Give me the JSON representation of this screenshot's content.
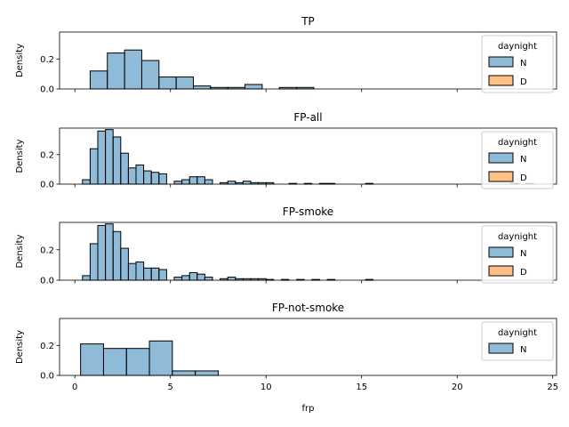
{
  "xlabel": "frp",
  "ylabel": "Density",
  "xticks": [
    0,
    5,
    10,
    15,
    20,
    25
  ],
  "yticks": [
    0.0,
    0.2
  ],
  "colors": {
    "N": "#1f77b4",
    "D": "#ff7f0e"
  },
  "chart_data": [
    {
      "type": "histogram",
      "title": "TP",
      "xlim": [
        -0.8,
        25.2
      ],
      "ylim": [
        0,
        0.38
      ],
      "legend": {
        "title": "daynight",
        "entries": [
          "N",
          "D"
        ],
        "placement": "top-right"
      },
      "bins": [
        {
          "x0": 0.8,
          "x1": 1.7,
          "N": 0.12,
          "D": 0
        },
        {
          "x0": 1.7,
          "x2": 0,
          "x1": 2.6,
          "N": 0.24,
          "D": 0
        },
        {
          "x0": 2.6,
          "x1": 3.5,
          "N": 0.26,
          "D": 0
        },
        {
          "x0": 3.5,
          "x1": 4.4,
          "N": 0.19,
          "D": 0
        },
        {
          "x0": 4.4,
          "x1": 5.3,
          "N": 0.08,
          "D": 0
        },
        {
          "x0": 5.3,
          "x1": 6.2,
          "N": 0.08,
          "D": 0
        },
        {
          "x0": 6.2,
          "x1": 7.1,
          "N": 0.02,
          "D": 0
        },
        {
          "x0": 7.1,
          "x1": 8.0,
          "N": 0.01,
          "D": 0
        },
        {
          "x0": 8.0,
          "x1": 8.9,
          "N": 0.01,
          "D": 0
        },
        {
          "x0": 8.9,
          "x1": 9.8,
          "N": 0.03,
          "D": 0
        },
        {
          "x0": 10.7,
          "x1": 11.6,
          "N": 0.01,
          "D": 0
        },
        {
          "x0": 11.6,
          "x1": 12.5,
          "N": 0.01,
          "D": 0
        }
      ]
    },
    {
      "type": "histogram",
      "title": "FP-all",
      "xlim": [
        -0.8,
        25.2
      ],
      "ylim": [
        0,
        0.38
      ],
      "legend": {
        "title": "daynight",
        "entries": [
          "N",
          "D"
        ],
        "placement": "top-right"
      },
      "bins": [
        {
          "x0": 0.4,
          "x1": 0.8,
          "N": 0.03,
          "D": 0
        },
        {
          "x0": 0.8,
          "x1": 1.2,
          "N": 0.24,
          "D": 0
        },
        {
          "x0": 1.2,
          "x1": 1.6,
          "N": 0.36,
          "D": 0
        },
        {
          "x0": 1.6,
          "x1": 2.0,
          "N": 0.37,
          "D": 0
        },
        {
          "x0": 2.0,
          "x1": 2.4,
          "N": 0.32,
          "D": 0
        },
        {
          "x0": 2.4,
          "x1": 2.8,
          "N": 0.21,
          "D": 0
        },
        {
          "x0": 2.8,
          "x1": 3.2,
          "N": 0.11,
          "D": 0
        },
        {
          "x0": 3.2,
          "x1": 3.6,
          "N": 0.13,
          "D": 0
        },
        {
          "x0": 3.6,
          "x1": 4.0,
          "N": 0.09,
          "D": 0
        },
        {
          "x0": 4.0,
          "x1": 4.4,
          "N": 0.08,
          "D": 0
        },
        {
          "x0": 4.4,
          "x1": 4.8,
          "N": 0.07,
          "D": 0
        },
        {
          "x0": 5.2,
          "x1": 5.6,
          "N": 0.02,
          "D": 0
        },
        {
          "x0": 5.6,
          "x1": 6.0,
          "N": 0.03,
          "D": 0
        },
        {
          "x0": 6.0,
          "x1": 6.4,
          "N": 0.05,
          "D": 0
        },
        {
          "x0": 6.4,
          "x1": 6.8,
          "N": 0.05,
          "D": 0
        },
        {
          "x0": 6.8,
          "x1": 7.2,
          "N": 0.03,
          "D": 0
        },
        {
          "x0": 7.6,
          "x1": 8.0,
          "N": 0.01,
          "D": 0
        },
        {
          "x0": 8.0,
          "x1": 8.4,
          "N": 0.02,
          "D": 0
        },
        {
          "x0": 8.4,
          "x1": 8.8,
          "N": 0.01,
          "D": 0
        },
        {
          "x0": 8.8,
          "x1": 9.2,
          "N": 0.02,
          "D": 0
        },
        {
          "x0": 9.2,
          "x1": 9.6,
          "N": 0.01,
          "D": 0
        },
        {
          "x0": 9.6,
          "x1": 10.0,
          "N": 0.01,
          "D": 0
        },
        {
          "x0": 10.0,
          "x1": 10.4,
          "N": 0.01,
          "D": 0
        },
        {
          "x0": 11.2,
          "x1": 11.6,
          "N": 0.005,
          "D": 0
        },
        {
          "x0": 12.0,
          "x1": 12.4,
          "N": 0.005,
          "D": 0
        },
        {
          "x0": 12.8,
          "x1": 13.2,
          "N": 0.005,
          "D": 0
        },
        {
          "x0": 13.2,
          "x1": 13.6,
          "N": 0.005,
          "D": 0
        },
        {
          "x0": 15.2,
          "x1": 15.6,
          "N": 0.005,
          "D": 0
        },
        {
          "x0": 22.8,
          "x1": 23.2,
          "N": 0.005,
          "D": 0
        },
        {
          "x0": 23.6,
          "x1": 24.0,
          "N": 0.005,
          "D": 0
        }
      ]
    },
    {
      "type": "histogram",
      "title": "FP-smoke",
      "xlim": [
        -0.8,
        25.2
      ],
      "ylim": [
        0,
        0.38
      ],
      "legend": {
        "title": "daynight",
        "entries": [
          "N",
          "D"
        ],
        "placement": "top-right"
      },
      "bins": [
        {
          "x0": 0.4,
          "x1": 0.8,
          "N": 0.03,
          "D": 0
        },
        {
          "x0": 0.8,
          "x1": 1.2,
          "N": 0.24,
          "D": 0
        },
        {
          "x0": 1.2,
          "x1": 1.6,
          "N": 0.36,
          "D": 0
        },
        {
          "x0": 1.6,
          "x1": 2.0,
          "N": 0.37,
          "D": 0
        },
        {
          "x0": 2.0,
          "x1": 2.4,
          "N": 0.32,
          "D": 0
        },
        {
          "x0": 2.4,
          "x1": 2.8,
          "N": 0.21,
          "D": 0
        },
        {
          "x0": 2.8,
          "x1": 3.2,
          "N": 0.11,
          "D": 0
        },
        {
          "x0": 3.2,
          "x1": 3.6,
          "N": 0.12,
          "D": 0
        },
        {
          "x0": 3.6,
          "x1": 4.0,
          "N": 0.08,
          "D": 0
        },
        {
          "x0": 4.0,
          "x1": 4.4,
          "N": 0.08,
          "D": 0
        },
        {
          "x0": 4.4,
          "x1": 4.8,
          "N": 0.07,
          "D": 0
        },
        {
          "x0": 5.2,
          "x1": 5.6,
          "N": 0.02,
          "D": 0
        },
        {
          "x0": 5.6,
          "x1": 6.0,
          "N": 0.03,
          "D": 0
        },
        {
          "x0": 6.0,
          "x1": 6.4,
          "N": 0.05,
          "D": 0
        },
        {
          "x0": 6.4,
          "x1": 6.8,
          "N": 0.04,
          "D": 0
        },
        {
          "x0": 6.8,
          "x1": 7.2,
          "N": 0.02,
          "D": 0
        },
        {
          "x0": 7.6,
          "x1": 8.0,
          "N": 0.01,
          "D": 0
        },
        {
          "x0": 8.0,
          "x1": 8.4,
          "N": 0.02,
          "D": 0
        },
        {
          "x0": 8.4,
          "x1": 8.8,
          "N": 0.01,
          "D": 0
        },
        {
          "x0": 8.8,
          "x1": 9.2,
          "N": 0.01,
          "D": 0
        },
        {
          "x0": 9.2,
          "x1": 9.6,
          "N": 0.01,
          "D": 0
        },
        {
          "x0": 9.6,
          "x1": 10.0,
          "N": 0.01,
          "D": 0
        },
        {
          "x0": 10.0,
          "x1": 10.4,
          "N": 0.005,
          "D": 0
        },
        {
          "x0": 10.8,
          "x1": 11.2,
          "N": 0.005,
          "D": 0
        },
        {
          "x0": 11.6,
          "x1": 12.0,
          "N": 0.005,
          "D": 0
        },
        {
          "x0": 12.4,
          "x1": 12.8,
          "N": 0.005,
          "D": 0
        },
        {
          "x0": 13.2,
          "x1": 13.6,
          "N": 0.005,
          "D": 0
        },
        {
          "x0": 15.2,
          "x1": 15.6,
          "N": 0.005,
          "D": 0
        }
      ]
    },
    {
      "type": "histogram",
      "title": "FP-not-smoke",
      "xlim": [
        -0.8,
        25.2
      ],
      "ylim": [
        0,
        0.38
      ],
      "legend": {
        "title": "daynight",
        "entries": [
          "N"
        ],
        "placement": "top-right"
      },
      "bins": [
        {
          "x0": 0.3,
          "x1": 1.5,
          "N": 0.21,
          "D": 0
        },
        {
          "x0": 1.5,
          "x1": 2.7,
          "N": 0.18,
          "D": 0
        },
        {
          "x0": 2.7,
          "x1": 3.9,
          "N": 0.18,
          "D": 0
        },
        {
          "x0": 3.9,
          "x1": 5.1,
          "N": 0.23,
          "D": 0
        },
        {
          "x0": 5.1,
          "x1": 6.3,
          "N": 0.03,
          "D": 0
        },
        {
          "x0": 6.3,
          "x1": 7.5,
          "N": 0.03,
          "D": 0
        }
      ]
    }
  ]
}
